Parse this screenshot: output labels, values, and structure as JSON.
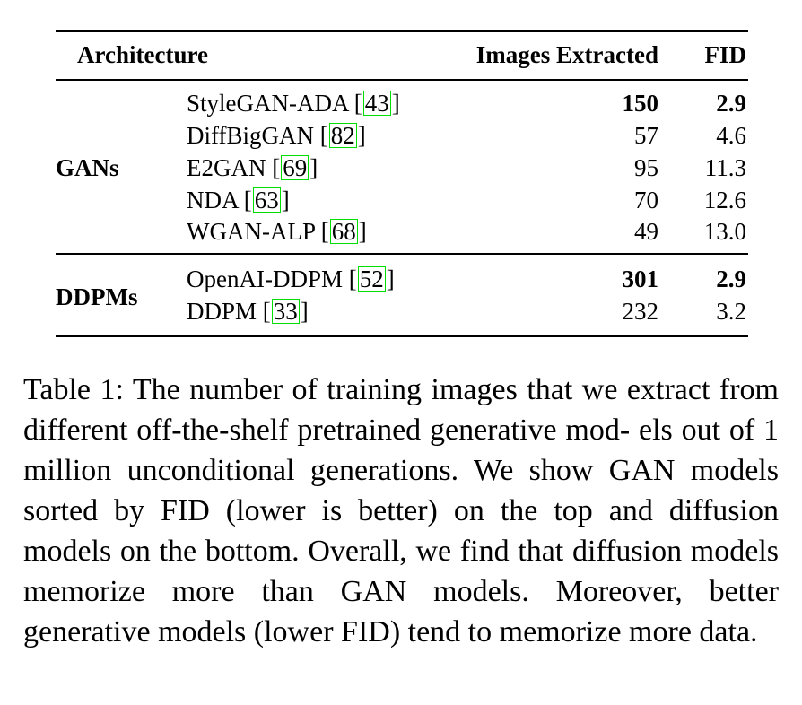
{
  "table": {
    "headers": {
      "architecture": "Architecture",
      "images": "Images Extracted",
      "fid": "FID"
    },
    "groups": [
      {
        "label": "GANs",
        "rows": [
          {
            "model": "StyleGAN-ADA",
            "cite": "43",
            "images": "150",
            "fid": "2.9",
            "bold": true
          },
          {
            "model": "DiffBigGAN",
            "cite": "82",
            "images": "57",
            "fid": "4.6",
            "bold": false
          },
          {
            "model": "E2GAN",
            "cite": "69",
            "images": "95",
            "fid": "11.3",
            "bold": false
          },
          {
            "model": "NDA",
            "cite": "63",
            "images": "70",
            "fid": "12.6",
            "bold": false
          },
          {
            "model": "WGAN-ALP",
            "cite": "68",
            "images": "49",
            "fid": "13.0",
            "bold": false
          }
        ]
      },
      {
        "label": "DDPMs",
        "rows": [
          {
            "model": "OpenAI-DDPM",
            "cite": "52",
            "images": "301",
            "fid": "2.9",
            "bold": true
          },
          {
            "model": "DDPM",
            "cite": "33",
            "images": "232",
            "fid": "3.2",
            "bold": false
          }
        ]
      }
    ]
  },
  "caption": "Table 1: The number of training images that we extract from different off-the-shelf pretrained generative mod- els out of 1 million unconditional generations. We show GAN models sorted by FID (lower is better) on the top and diffusion models on the bottom. Overall, we find that diffusion models memorize more than GAN models. Moreover, better generative models (lower FID) tend to memorize more data."
}
